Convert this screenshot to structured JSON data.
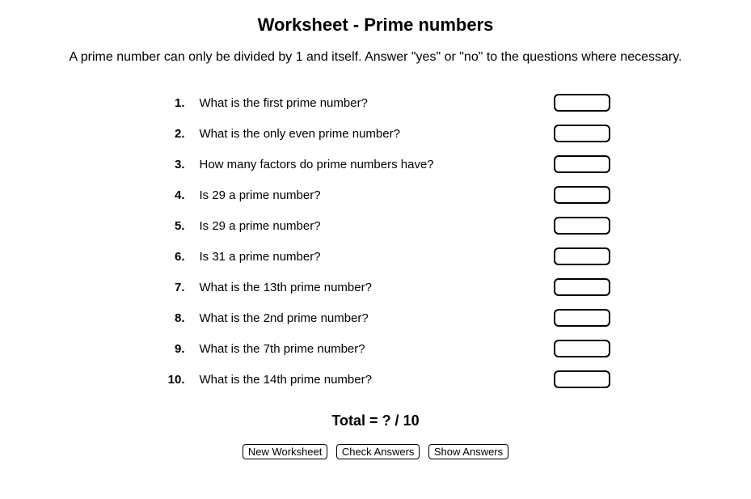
{
  "title": "Worksheet - Prime numbers",
  "instructions": "A prime number can only be divided by 1 and itself. Answer \"yes\" or \"no\" to the questions where necessary.",
  "questions": [
    {
      "num": "1.",
      "text": "What is the first prime number?",
      "value": ""
    },
    {
      "num": "2.",
      "text": "What is the only even prime number?",
      "value": ""
    },
    {
      "num": "3.",
      "text": "How many factors do prime numbers have?",
      "value": ""
    },
    {
      "num": "4.",
      "text": "Is 29 a prime number?",
      "value": ""
    },
    {
      "num": "5.",
      "text": "Is 29 a prime number?",
      "value": ""
    },
    {
      "num": "6.",
      "text": "Is 31 a prime number?",
      "value": ""
    },
    {
      "num": "7.",
      "text": "What is the 13th prime number?",
      "value": ""
    },
    {
      "num": "8.",
      "text": "What is the 2nd prime number?",
      "value": ""
    },
    {
      "num": "9.",
      "text": "What is the 7th prime number?",
      "value": ""
    },
    {
      "num": "10.",
      "text": "What is the 14th prime number?",
      "value": ""
    }
  ],
  "total_label": "Total = ? / 10",
  "buttons": {
    "new_worksheet": "New Worksheet",
    "check_answers": "Check Answers",
    "show_answers": "Show Answers"
  },
  "style": {
    "background_color": "#ffffff",
    "text_color": "#000000",
    "title_fontsize": 22,
    "body_fontsize": 15,
    "input_border_color": "#000000",
    "input_border_radius": 6,
    "button_border_color": "#000000"
  }
}
